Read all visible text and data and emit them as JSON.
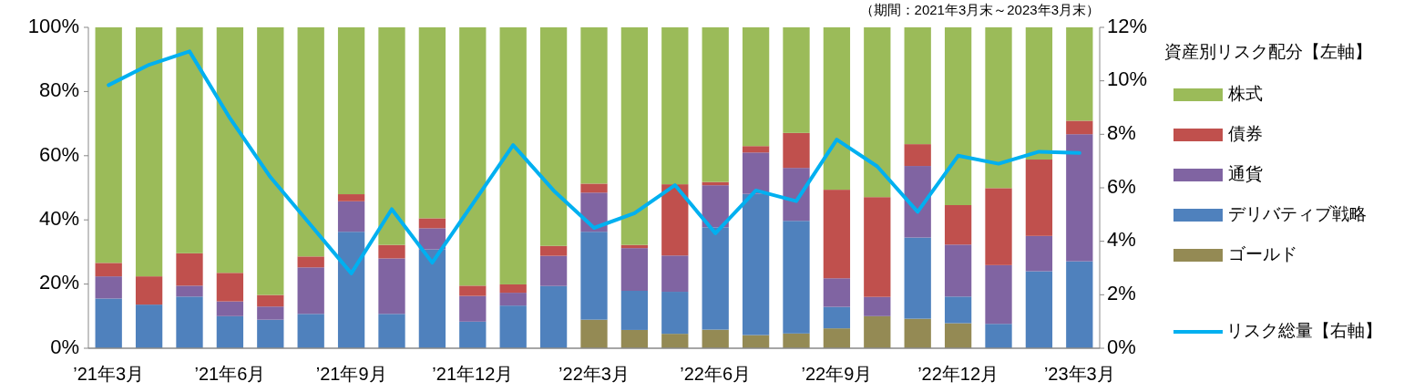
{
  "chart_data": {
    "type": "bar",
    "stacked": true,
    "legend": "right",
    "legend_title": "資産別リスク配分【左軸】",
    "grid": false,
    "annotations": [
      "（期間：2021年3月末～2023年3月末）"
    ],
    "categories": [
      "’21年3月",
      null,
      null,
      "’21年6月",
      null,
      null,
      "’21年9月",
      null,
      null,
      "’21年12月",
      null,
      null,
      "’22年3月",
      null,
      null,
      "’22年6月",
      null,
      null,
      "’22年9月",
      null,
      null,
      "’22年12月",
      null,
      null,
      "’23年3月"
    ],
    "ylim": [
      0,
      100
    ],
    "yticks": [
      {
        "value": 0,
        "label": "0%"
      },
      {
        "value": 20,
        "label": "20%"
      },
      {
        "value": 40,
        "label": "40%"
      },
      {
        "value": 60,
        "label": "60%"
      },
      {
        "value": 80,
        "label": "80%"
      },
      {
        "value": 100,
        "label": "100%"
      }
    ],
    "y2lim": [
      0,
      12
    ],
    "y2ticks": [
      {
        "value": 0,
        "label": "0%"
      },
      {
        "value": 2,
        "label": "2%"
      },
      {
        "value": 4,
        "label": "4%"
      },
      {
        "value": 6,
        "label": "6%"
      },
      {
        "value": 8,
        "label": "8%"
      },
      {
        "value": 10,
        "label": "10%"
      },
      {
        "value": 12,
        "label": "12%"
      }
    ],
    "series": [
      {
        "name": "ゴールド",
        "color": "#948a54",
        "values": [
          0,
          0,
          0,
          0,
          0,
          0,
          0,
          0,
          0,
          0,
          0,
          0,
          8.9,
          5.7,
          4.5,
          5.8,
          4.1,
          4.6,
          6.2,
          10.0,
          9.2,
          7.8,
          0,
          0,
          0
        ]
      },
      {
        "name": "デリバティブ戦略",
        "color": "#4f81bd",
        "values": [
          15.5,
          13.6,
          16.1,
          10.0,
          8.9,
          10.7,
          36.3,
          10.7,
          30.8,
          8.3,
          13.3,
          19.4,
          27.4,
          12.2,
          13.1,
          31.9,
          44.0,
          35.1,
          6.7,
          0,
          25.3,
          8.3,
          7.6,
          24.0,
          27.1
        ]
      },
      {
        "name": "通貨",
        "color": "#8064a2",
        "values": [
          6.9,
          0,
          3.4,
          4.6,
          4.1,
          14.5,
          9.5,
          17.3,
          6.6,
          8.0,
          4.0,
          9.4,
          12.2,
          13.3,
          11.3,
          13.1,
          12.9,
          16.5,
          8.9,
          6.0,
          22.3,
          16.2,
          18.3,
          11.0,
          39.6
        ]
      },
      {
        "name": "債券",
        "color": "#c0504d",
        "values": [
          4.2,
          8.8,
          10.1,
          8.9,
          3.6,
          3.4,
          2.2,
          4.2,
          3.1,
          3.2,
          2.6,
          3.1,
          2.8,
          1.0,
          22.2,
          1.0,
          2.0,
          10.9,
          27.6,
          31.1,
          6.8,
          12.3,
          24.0,
          23.8,
          4.2
        ]
      },
      {
        "name": "株式",
        "color": "#9bbb59",
        "values": [
          73.4,
          77.6,
          70.4,
          76.5,
          83.4,
          71.4,
          52.0,
          67.8,
          59.5,
          80.5,
          80.1,
          68.1,
          48.7,
          67.8,
          48.9,
          48.2,
          37.0,
          32.9,
          50.6,
          52.9,
          36.4,
          55.4,
          50.1,
          41.2,
          29.1
        ]
      },
      {
        "name": "リスク総量【右軸】",
        "type": "line",
        "axis": "y2",
        "color": "#00b0f0",
        "values": [
          9.84,
          10.6,
          11.1,
          8.6,
          6.4,
          4.6,
          2.8,
          5.2,
          3.2,
          5.4,
          7.6,
          5.9,
          4.5,
          5.05,
          6.1,
          4.3,
          5.9,
          5.5,
          7.8,
          6.8,
          5.1,
          7.2,
          6.9,
          7.35,
          7.3
        ]
      }
    ]
  }
}
